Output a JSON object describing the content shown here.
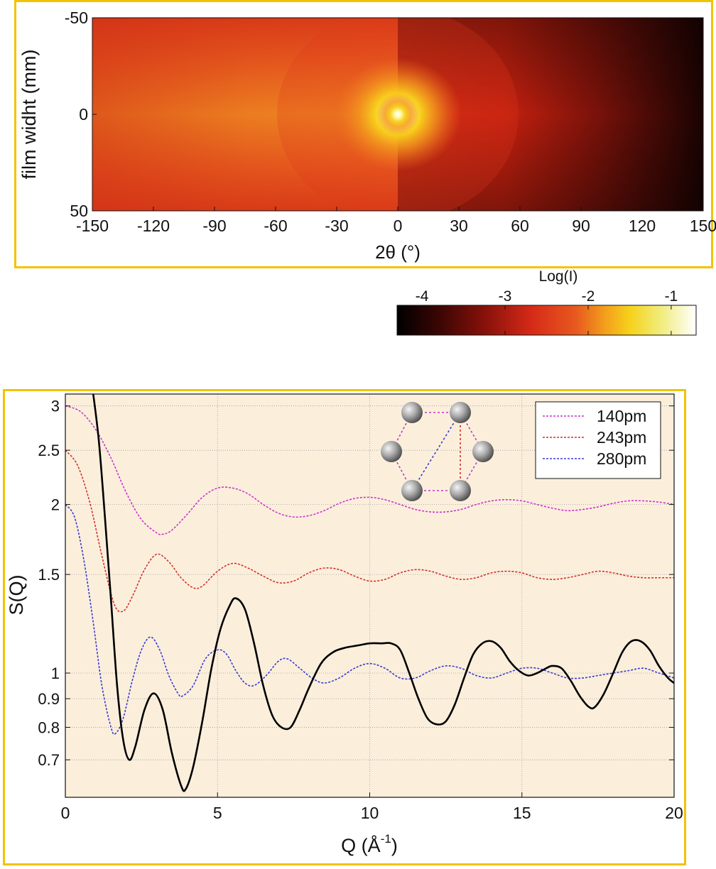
{
  "chart_data": [
    {
      "type": "heatmap",
      "xlabel": "2θ (°)",
      "ylabel": "film widht (mm)",
      "xlim": [
        -150,
        150
      ],
      "ylim": [
        -50,
        50
      ],
      "y_inverted": true,
      "x_ticks": [
        "-150",
        "-120",
        "-90",
        "-60",
        "-30",
        "0",
        "30",
        "60",
        "90",
        "120",
        "150"
      ],
      "y_ticks": [
        "-50",
        "0",
        "50"
      ],
      "colorbar": {
        "title": "Log(I)",
        "range": [
          -4.3,
          -0.7
        ],
        "ticks": [
          "-4",
          "-3",
          "-2",
          "-1"
        ],
        "colormap": [
          "#000000",
          "#5a0a05",
          "#b3190f",
          "#e33a1c",
          "#f0841c",
          "#f8d21c",
          "#f4ef72",
          "#ffffff"
        ]
      },
      "features": {
        "center_spot": {
          "two_theta": 0,
          "width_mm": 0,
          "log_i": -0.8
        },
        "left_half_base_log_i": -2.7,
        "right_half_edge_log_i": -4.2
      }
    },
    {
      "type": "line",
      "xlabel": "Q (Å",
      "xlabel_sup": "-1",
      "xlabel_tail": ")",
      "ylabel": "S(Q)",
      "xlim": [
        0,
        20
      ],
      "ylim": [
        0.6,
        3.15
      ],
      "y_scale": "log",
      "grid": true,
      "background": "#fbefdc",
      "x_ticks": [
        "0",
        "5",
        "10",
        "15",
        "20"
      ],
      "y_ticks": [
        "0.7",
        "0.8",
        "0.9",
        "1",
        "1.5",
        "2",
        "2.5",
        "3"
      ],
      "legend_position": "top-right",
      "legend": [
        {
          "name": "140pm",
          "color": "#cc33cc"
        },
        {
          "name": "243pm",
          "color": "#d4302a"
        },
        {
          "name": "280pm",
          "color": "#3a3ad0"
        }
      ],
      "series": [
        {
          "name": "140pm",
          "color": "#cc33cc",
          "style": "dashed",
          "x": [
            0,
            0.5,
            1.0,
            1.5,
            2.0,
            2.5,
            3.0,
            3.2,
            3.5,
            4.0,
            4.5,
            5.0,
            5.5,
            6.0,
            6.5,
            7.0,
            7.5,
            8.0,
            8.5,
            9.0,
            9.5,
            10.0,
            10.5,
            11.0,
            11.5,
            12.0,
            12.5,
            13.0,
            13.5,
            14.0,
            14.5,
            15.0,
            15.5,
            16.0,
            16.5,
            17.0,
            17.5,
            18.0,
            18.5,
            19.0,
            19.5,
            20.0
          ],
          "y": [
            3.0,
            2.93,
            2.72,
            2.42,
            2.1,
            1.88,
            1.78,
            1.77,
            1.8,
            1.92,
            2.06,
            2.14,
            2.14,
            2.09,
            2.0,
            1.93,
            1.9,
            1.91,
            1.95,
            2.01,
            2.05,
            2.06,
            2.04,
            2.0,
            1.96,
            1.94,
            1.94,
            1.96,
            2.0,
            2.03,
            2.04,
            2.03,
            2.0,
            1.97,
            1.95,
            1.96,
            1.98,
            2.01,
            2.03,
            2.03,
            2.02,
            2.0
          ]
        },
        {
          "name": "243pm",
          "color": "#d4302a",
          "style": "dashed",
          "x": [
            0,
            0.4,
            0.8,
            1.2,
            1.6,
            1.9,
            2.2,
            2.6,
            3.0,
            3.4,
            3.8,
            4.2,
            4.5,
            5.0,
            5.5,
            6.0,
            6.5,
            7.0,
            7.5,
            8.0,
            8.5,
            9.0,
            9.5,
            10.0,
            10.5,
            11.0,
            11.5,
            12.0,
            12.5,
            13.0,
            13.5,
            14.0,
            14.5,
            15.0,
            15.5,
            16.0,
            16.5,
            17.0,
            17.5,
            18.0,
            18.5,
            19.0,
            19.5,
            20.0
          ],
          "y": [
            2.5,
            2.35,
            2.02,
            1.62,
            1.33,
            1.29,
            1.37,
            1.53,
            1.63,
            1.58,
            1.48,
            1.42,
            1.43,
            1.52,
            1.57,
            1.54,
            1.49,
            1.45,
            1.46,
            1.51,
            1.54,
            1.53,
            1.49,
            1.46,
            1.47,
            1.51,
            1.53,
            1.52,
            1.49,
            1.47,
            1.48,
            1.51,
            1.52,
            1.51,
            1.48,
            1.47,
            1.48,
            1.5,
            1.52,
            1.51,
            1.49,
            1.48,
            1.48,
            1.48
          ]
        },
        {
          "name": "280pm",
          "color": "#3a3ad0",
          "style": "dashed",
          "x": [
            0,
            0.3,
            0.6,
            0.9,
            1.2,
            1.5,
            1.65,
            1.9,
            2.2,
            2.5,
            2.8,
            3.1,
            3.4,
            3.7,
            3.85,
            4.2,
            4.6,
            5.0,
            5.3,
            5.6,
            5.9,
            6.2,
            6.6,
            7.0,
            7.3,
            7.7,
            8.1,
            8.5,
            9.0,
            9.5,
            10.0,
            10.5,
            11.0,
            11.5,
            12.0,
            12.5,
            13.0,
            13.5,
            14.0,
            14.5,
            15.0,
            15.5,
            16.0,
            16.5,
            17.0,
            17.5,
            18.0,
            18.5,
            19.0,
            19.5,
            20.0
          ],
          "y": [
            2.0,
            1.9,
            1.6,
            1.25,
            0.95,
            0.8,
            0.78,
            0.83,
            0.97,
            1.1,
            1.16,
            1.1,
            0.99,
            0.92,
            0.91,
            0.95,
            1.06,
            1.1,
            1.08,
            1.01,
            0.96,
            0.95,
            0.99,
            1.05,
            1.06,
            1.02,
            0.98,
            0.96,
            0.98,
            1.02,
            1.04,
            1.02,
            0.98,
            0.98,
            1.01,
            1.03,
            1.02,
            0.99,
            0.98,
            1.0,
            1.02,
            1.02,
            1.0,
            0.98,
            0.98,
            0.99,
            1.0,
            1.01,
            1.02,
            1.0,
            0.98
          ]
        },
        {
          "name": "",
          "color": "#000000",
          "style": "solid",
          "x": [
            0.9,
            1.1,
            1.3,
            1.5,
            1.7,
            1.9,
            2.1,
            2.3,
            2.6,
            2.9,
            3.2,
            3.5,
            3.8,
            3.95,
            4.2,
            4.5,
            4.8,
            5.1,
            5.4,
            5.6,
            5.9,
            6.2,
            6.5,
            6.8,
            7.1,
            7.4,
            7.7,
            8.0,
            8.4,
            8.8,
            9.2,
            9.6,
            10.0,
            10.4,
            10.7,
            11.0,
            11.3,
            11.6,
            11.9,
            12.2,
            12.5,
            12.8,
            13.1,
            13.4,
            13.7,
            14.0,
            14.3,
            14.6,
            14.9,
            15.2,
            15.5,
            15.8,
            16.0,
            16.3,
            16.6,
            16.9,
            17.2,
            17.4,
            17.7,
            18.0,
            18.3,
            18.6,
            18.9,
            19.2,
            19.5,
            19.8,
            20.0
          ],
          "y": [
            3.2,
            2.6,
            1.9,
            1.35,
            0.95,
            0.76,
            0.7,
            0.74,
            0.86,
            0.92,
            0.86,
            0.72,
            0.63,
            0.62,
            0.68,
            0.82,
            1.02,
            1.2,
            1.32,
            1.36,
            1.3,
            1.13,
            0.95,
            0.84,
            0.8,
            0.8,
            0.86,
            0.94,
            1.04,
            1.09,
            1.11,
            1.12,
            1.13,
            1.13,
            1.13,
            1.1,
            1.0,
            0.9,
            0.83,
            0.81,
            0.82,
            0.88,
            0.98,
            1.08,
            1.13,
            1.14,
            1.11,
            1.05,
            1.01,
            0.99,
            1.0,
            1.02,
            1.03,
            1.02,
            0.97,
            0.91,
            0.87,
            0.87,
            0.92,
            1.0,
            1.09,
            1.14,
            1.14,
            1.1,
            1.03,
            0.98,
            0.96
          ]
        }
      ],
      "inset": {
        "type": "hexagon-molecule",
        "atoms": 6
      }
    }
  ]
}
